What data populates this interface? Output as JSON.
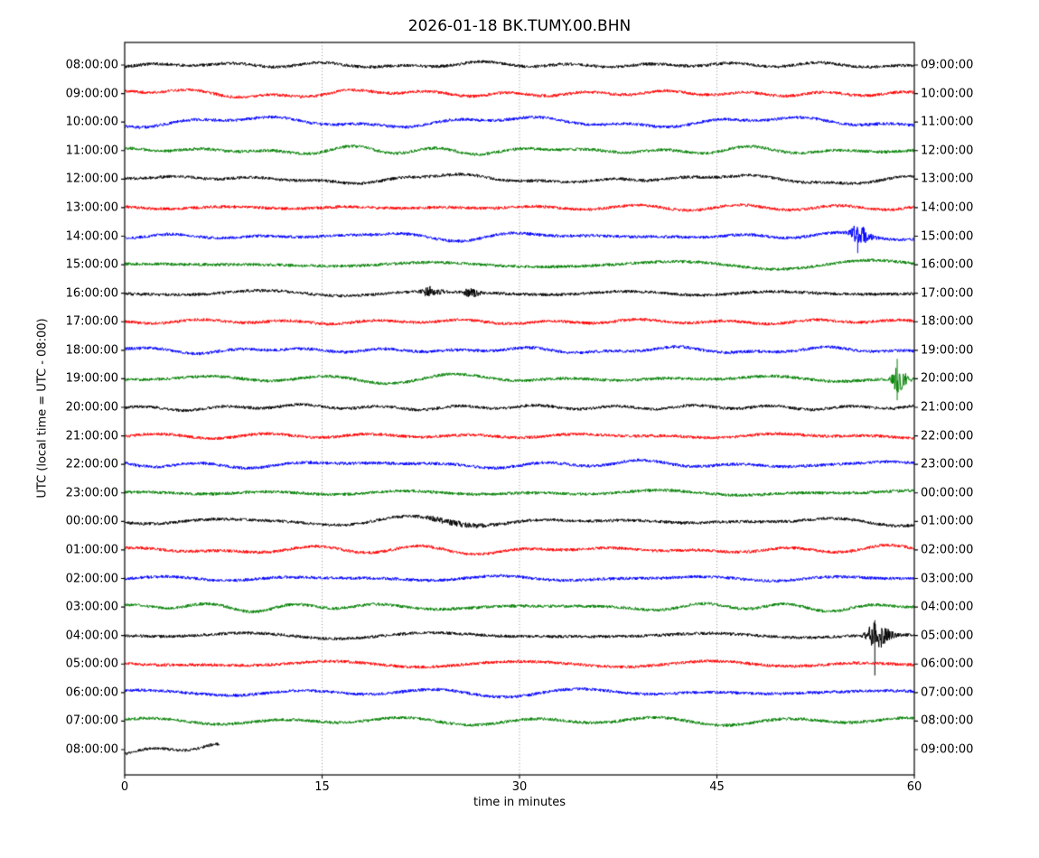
{
  "title": "2026-01-18 BK.TUMY.00.BHN",
  "chart_data": {
    "type": "line",
    "subtype": "seismogram-dayplot-helicorder",
    "title": "2026-01-18 BK.TUMY.00.BHN",
    "xlabel": "time in minutes",
    "ylabel": "UTC (local time = UTC - 08:00)",
    "xlim": [
      0,
      60
    ],
    "minutes_per_row": 60,
    "grid": "vertical dotted lines at 15, 30, 45",
    "background_color": "#ffffff",
    "frame_color": "#000000",
    "grid_color": "rgba(0,0,0,0.55)",
    "trace_colors_cycle": [
      "#000000",
      "#ff0000",
      "#0000ff",
      "#008000"
    ],
    "x_ticks": [
      {
        "value": 0,
        "label": "0"
      },
      {
        "value": 15,
        "label": "15"
      },
      {
        "value": 30,
        "label": "30"
      },
      {
        "value": 45,
        "label": "45"
      },
      {
        "value": 60,
        "label": "60"
      }
    ],
    "rows": [
      {
        "left_label": "08:00:00",
        "right_label": "09:00:00",
        "color": "#000000",
        "duration_min": 60
      },
      {
        "left_label": "09:00:00",
        "right_label": "10:00:00",
        "color": "#ff0000",
        "duration_min": 60
      },
      {
        "left_label": "10:00:00",
        "right_label": "11:00:00",
        "color": "#0000ff",
        "duration_min": 60
      },
      {
        "left_label": "11:00:00",
        "right_label": "12:00:00",
        "color": "#008000",
        "duration_min": 60
      },
      {
        "left_label": "12:00:00",
        "right_label": "13:00:00",
        "color": "#000000",
        "duration_min": 60
      },
      {
        "left_label": "13:00:00",
        "right_label": "14:00:00",
        "color": "#ff0000",
        "duration_min": 60
      },
      {
        "left_label": "14:00:00",
        "right_label": "15:00:00",
        "color": "#0000ff",
        "duration_min": 60
      },
      {
        "left_label": "15:00:00",
        "right_label": "16:00:00",
        "color": "#008000",
        "duration_min": 60
      },
      {
        "left_label": "16:00:00",
        "right_label": "17:00:00",
        "color": "#000000",
        "duration_min": 60
      },
      {
        "left_label": "17:00:00",
        "right_label": "18:00:00",
        "color": "#ff0000",
        "duration_min": 60
      },
      {
        "left_label": "18:00:00",
        "right_label": "19:00:00",
        "color": "#0000ff",
        "duration_min": 60
      },
      {
        "left_label": "19:00:00",
        "right_label": "20:00:00",
        "color": "#008000",
        "duration_min": 60
      },
      {
        "left_label": "20:00:00",
        "right_label": "21:00:00",
        "color": "#000000",
        "duration_min": 60
      },
      {
        "left_label": "21:00:00",
        "right_label": "22:00:00",
        "color": "#ff0000",
        "duration_min": 60
      },
      {
        "left_label": "22:00:00",
        "right_label": "23:00:00",
        "color": "#0000ff",
        "duration_min": 60
      },
      {
        "left_label": "23:00:00",
        "right_label": "00:00:00",
        "color": "#008000",
        "duration_min": 60
      },
      {
        "left_label": "00:00:00",
        "right_label": "01:00:00",
        "color": "#000000",
        "duration_min": 60
      },
      {
        "left_label": "01:00:00",
        "right_label": "02:00:00",
        "color": "#ff0000",
        "duration_min": 60
      },
      {
        "left_label": "02:00:00",
        "right_label": "03:00:00",
        "color": "#0000ff",
        "duration_min": 60
      },
      {
        "left_label": "03:00:00",
        "right_label": "04:00:00",
        "color": "#008000",
        "duration_min": 60
      },
      {
        "left_label": "04:00:00",
        "right_label": "05:00:00",
        "color": "#000000",
        "duration_min": 60
      },
      {
        "left_label": "05:00:00",
        "right_label": "06:00:00",
        "color": "#ff0000",
        "duration_min": 60
      },
      {
        "left_label": "06:00:00",
        "right_label": "07:00:00",
        "color": "#0000ff",
        "duration_min": 60
      },
      {
        "left_label": "07:00:00",
        "right_label": "08:00:00",
        "color": "#008000",
        "duration_min": 60
      },
      {
        "left_label": "08:00:00",
        "right_label": "09:00:00",
        "color": "#000000",
        "duration_min": 7.2
      }
    ],
    "events": [
      {
        "row_index": 6,
        "utc_row": "14:00:00",
        "minute": 55.7,
        "width_min": 0.45,
        "rel_amp": 6.0,
        "spike_up_rel": 0,
        "spike_down_rel": 11,
        "note": "small local event burst, blue trace"
      },
      {
        "row_index": 8,
        "utc_row": "16:00:00",
        "minute": 23.1,
        "width_min": 0.45,
        "rel_amp": 2.6,
        "spike_up_rel": 0,
        "spike_down_rel": 0,
        "note": "minor burst, black trace"
      },
      {
        "row_index": 8,
        "utc_row": "16:00:00",
        "minute": 26.2,
        "width_min": 0.4,
        "rel_amp": 2.3,
        "spike_up_rel": 0,
        "spike_down_rel": 0,
        "note": "minor burst, black trace"
      },
      {
        "row_index": 11,
        "utc_row": "19:00:00",
        "minute": 58.7,
        "width_min": 0.35,
        "rel_amp": 8.0,
        "spike_up_rel": 13,
        "spike_down_rel": 14,
        "note": "sharp event near right edge, green trace"
      },
      {
        "row_index": 16,
        "utc_row": "00:00:00",
        "minute": 24.5,
        "width_min": 1.6,
        "rel_amp": 1.1,
        "spike_up_rel": 0,
        "spike_down_rel": 0,
        "note": "slight noise increase, black trace"
      },
      {
        "row_index": 20,
        "utc_row": "04:00:00",
        "minute": 57.0,
        "width_min": 0.55,
        "rel_amp": 9.0,
        "spike_up_rel": 10,
        "spike_down_rel": 26,
        "note": "largest event, long downward spike, black trace"
      }
    ]
  }
}
